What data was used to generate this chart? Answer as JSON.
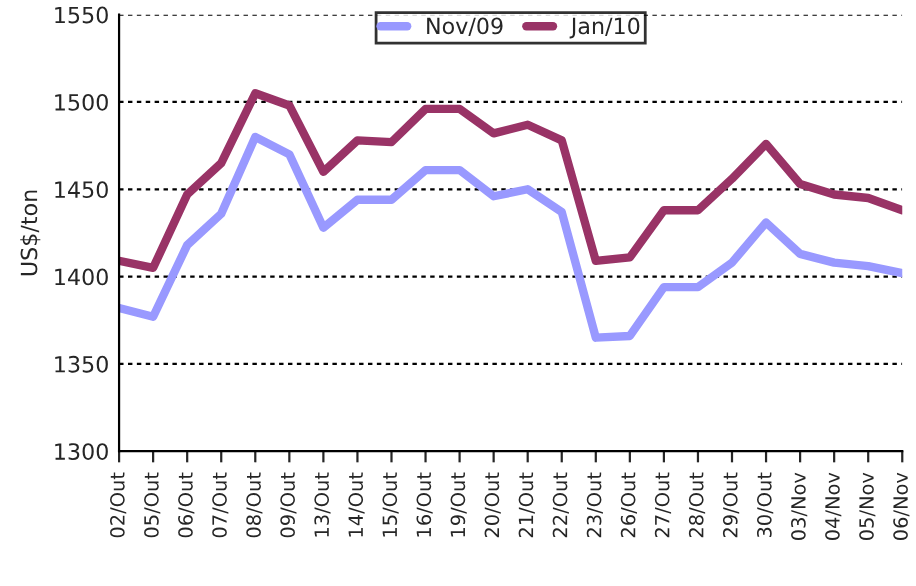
{
  "chart_data": {
    "type": "line",
    "ylabel": "US$/ton",
    "categories": [
      "02/Out",
      "05/Out",
      "06/Out",
      "07/Out",
      "08/Out",
      "09/Out",
      "13/Out",
      "14/Out",
      "15/Out",
      "16/Out",
      "19/Out",
      "20/Out",
      "21/Out",
      "22/Out",
      "23/Out",
      "26/Out",
      "27/Out",
      "28/Out",
      "29/Out",
      "30/Out",
      "03/Nov",
      "04/Nov",
      "05/Nov",
      "06/Nov"
    ],
    "series": [
      {
        "name": "Nov/09",
        "color": "#9999ff",
        "values": [
          1382,
          1377,
          1418,
          1436,
          1480,
          1470,
          1428,
          1444,
          1444,
          1461,
          1461,
          1446,
          1450,
          1437,
          1365,
          1366,
          1394,
          1394,
          1408,
          1431,
          1413,
          1408,
          1406,
          1402
        ]
      },
      {
        "name": "Jan/10",
        "color": "#993366",
        "values": [
          1409,
          1405,
          1447,
          1465,
          1505,
          1498,
          1460,
          1478,
          1477,
          1496,
          1496,
          1482,
          1487,
          1478,
          1409,
          1411,
          1438,
          1438,
          1456,
          1476,
          1453,
          1447,
          1445,
          1438
        ]
      }
    ],
    "ylim": [
      1300,
      1550
    ],
    "yticks": [
      1300,
      1350,
      1400,
      1450,
      1500,
      1550
    ],
    "grid": "y",
    "legend": "top",
    "marker": "none",
    "line_style": "solid"
  }
}
